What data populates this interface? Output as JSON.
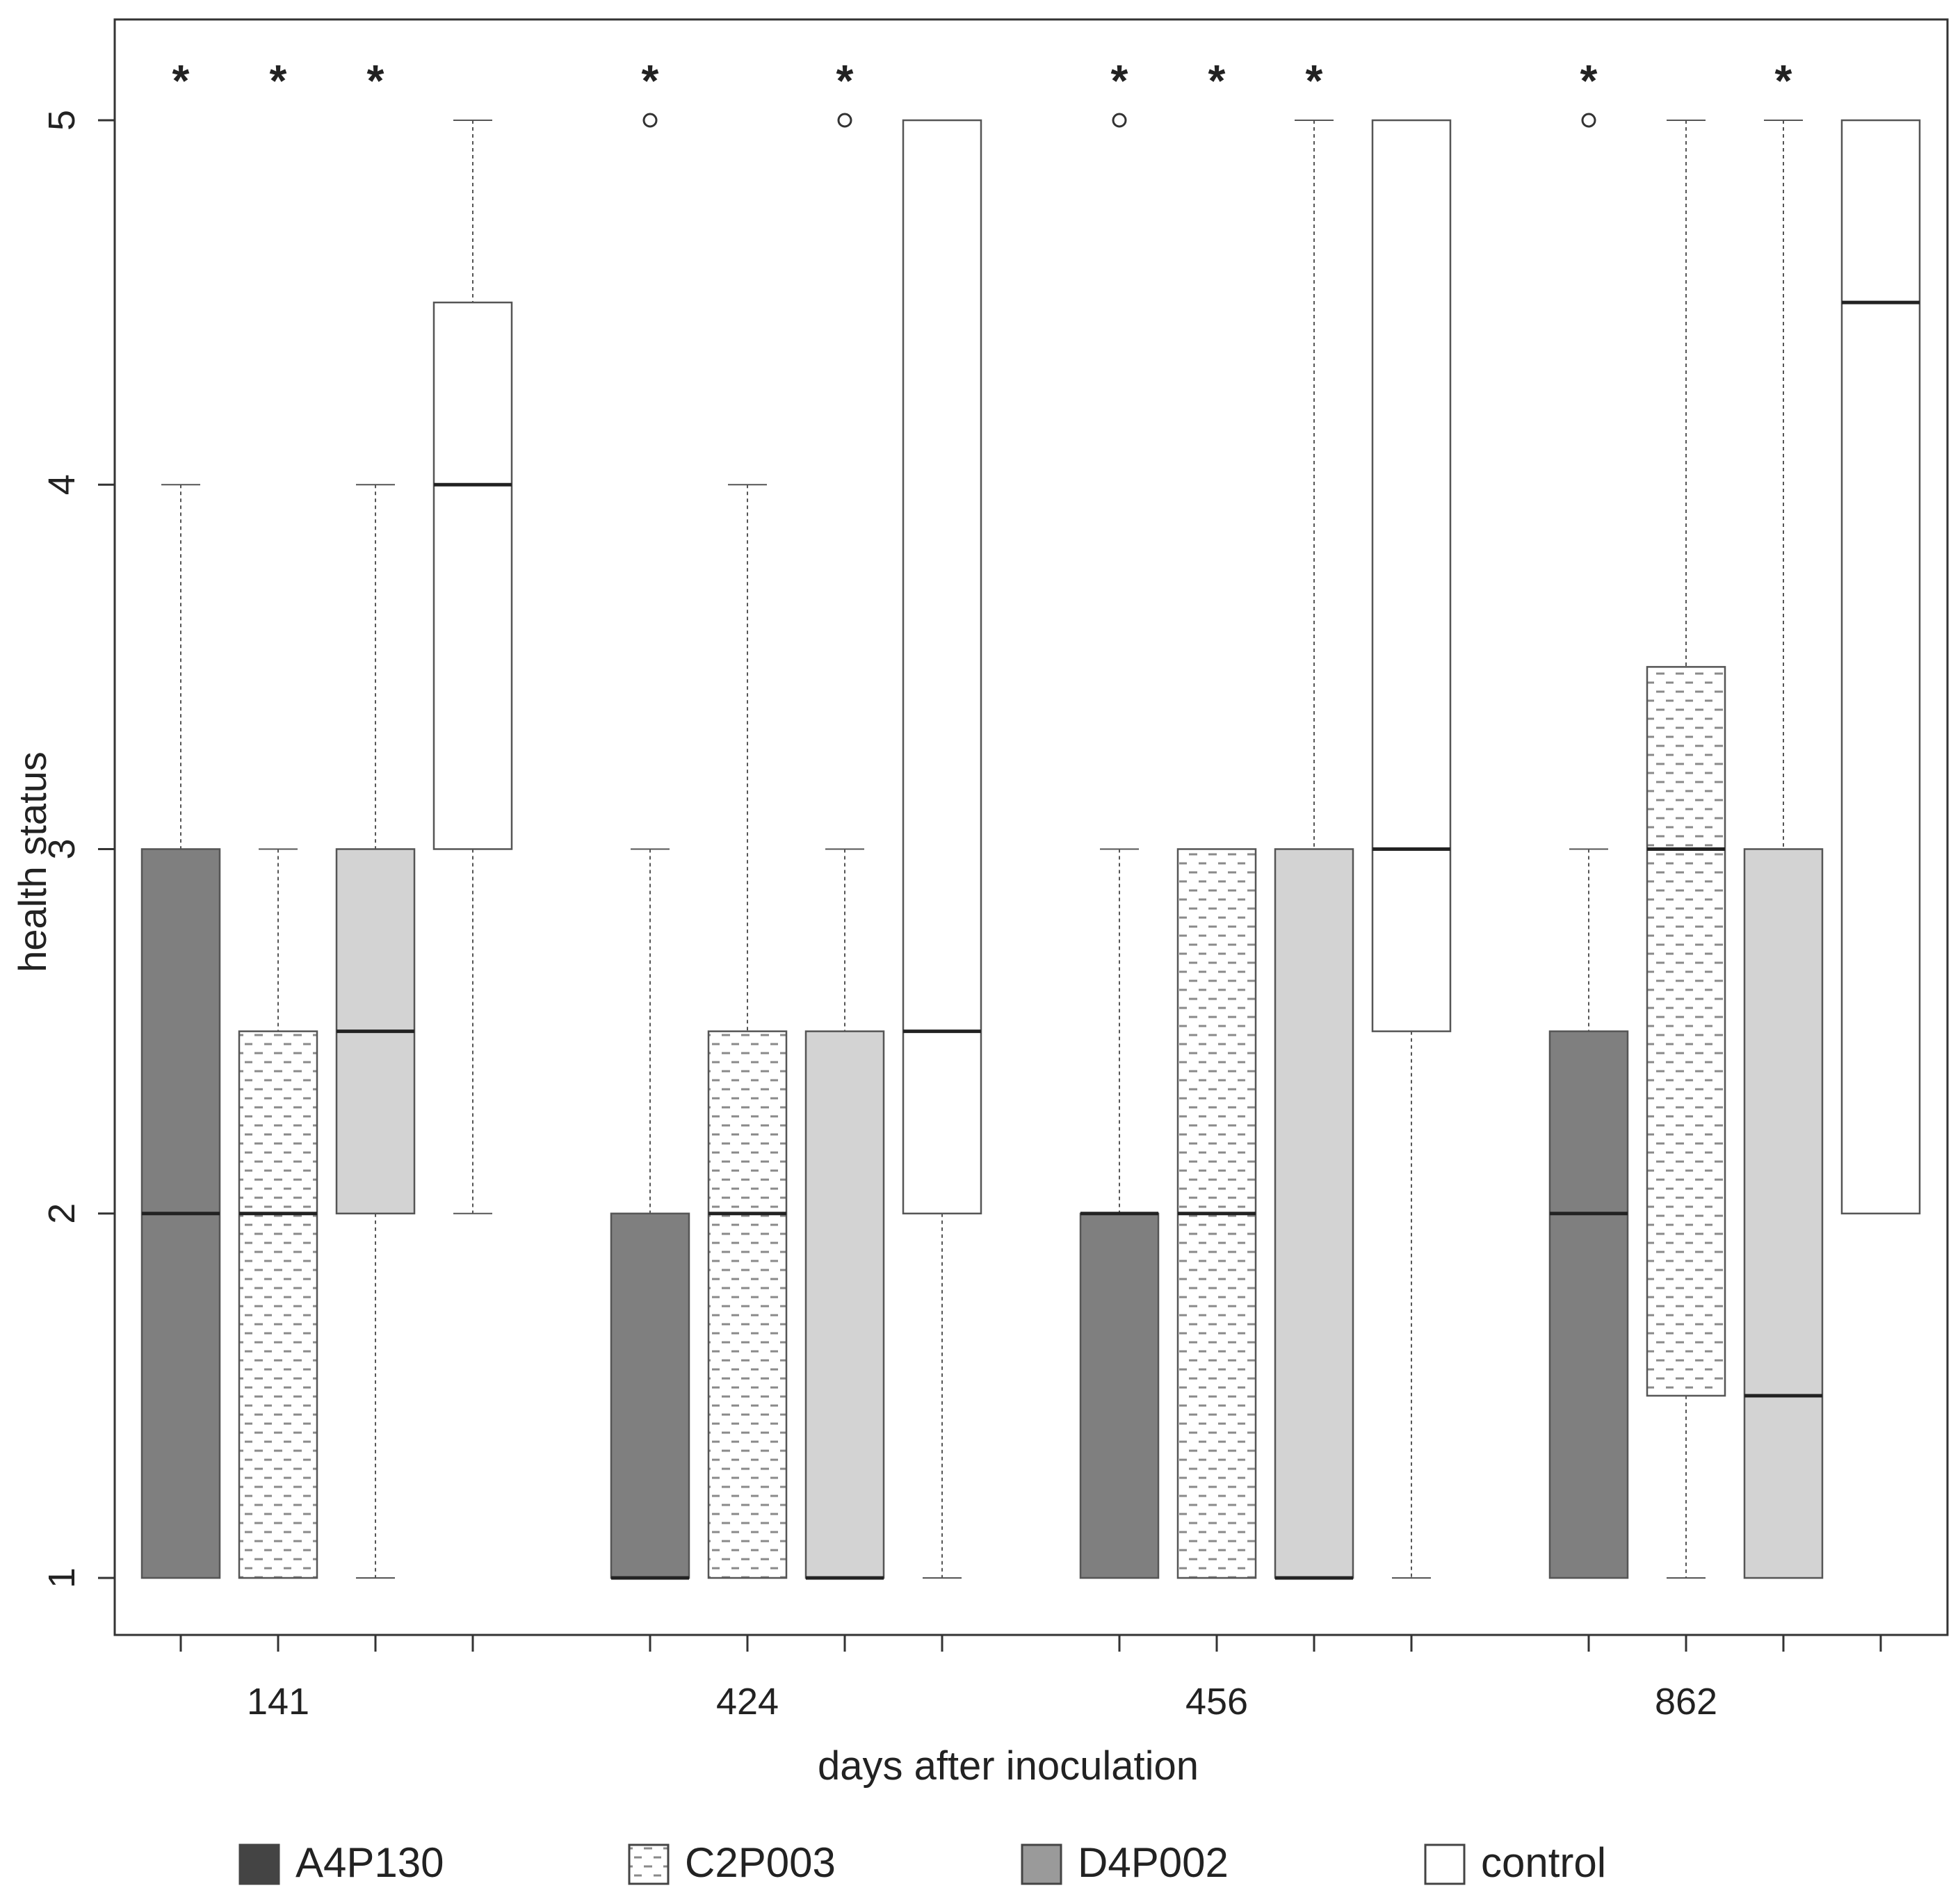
{
  "chart_data": {
    "type": "boxplot",
    "title": "",
    "xlabel": "days after inoculation",
    "ylabel": "health status",
    "ylim": [
      0.84,
      5.28
    ],
    "yticks": [
      1,
      2,
      3,
      4,
      5
    ],
    "ytick_labels": [
      "1",
      "2",
      "3",
      "4",
      "5"
    ],
    "categories": [
      "141",
      "424",
      "456",
      "862"
    ],
    "grid": false,
    "legend_position": "bottom",
    "significance_marker": "*",
    "series": [
      {
        "name": "A4P130",
        "pattern": "solid-dark",
        "color": "#7f7f7f",
        "legend_color": "#444444",
        "boxes": [
          {
            "category": "141",
            "whisker_low": 1,
            "q1": 1,
            "median": 2,
            "q3": 3,
            "whisker_high": 4,
            "outliers": [],
            "significant": true
          },
          {
            "category": "424",
            "whisker_low": 1,
            "q1": 1,
            "median": 1,
            "q3": 2,
            "whisker_high": 3,
            "outliers": [
              5
            ],
            "significant": true
          },
          {
            "category": "456",
            "whisker_low": 1,
            "q1": 1,
            "median": 2,
            "q3": 2,
            "whisker_high": 3,
            "outliers": [
              5
            ],
            "significant": true
          },
          {
            "category": "862",
            "whisker_low": 1,
            "q1": 1,
            "median": 2,
            "q3": 2.5,
            "whisker_high": 3,
            "outliers": [
              5
            ],
            "significant": true
          }
        ]
      },
      {
        "name": "C2P003",
        "pattern": "dashed",
        "color": "#ffffff",
        "legend_color": "#ffffff",
        "boxes": [
          {
            "category": "141",
            "whisker_low": 1,
            "q1": 1,
            "median": 2,
            "q3": 2.5,
            "whisker_high": 3,
            "outliers": [],
            "significant": true
          },
          {
            "category": "424",
            "whisker_low": 1,
            "q1": 1,
            "median": 2,
            "q3": 2.5,
            "whisker_high": 4,
            "outliers": [],
            "significant": false
          },
          {
            "category": "456",
            "whisker_low": 1,
            "q1": 1,
            "median": 2,
            "q3": 3,
            "whisker_high": 3,
            "outliers": [],
            "significant": true
          },
          {
            "category": "862",
            "whisker_low": 1,
            "q1": 1.5,
            "median": 3,
            "q3": 3.5,
            "whisker_high": 5,
            "outliers": [],
            "significant": false
          }
        ]
      },
      {
        "name": "D4P002",
        "pattern": "solid-light",
        "color": "#d3d3d3",
        "legend_color": "#9a9a9a",
        "boxes": [
          {
            "category": "141",
            "whisker_low": 1,
            "q1": 2,
            "median": 2.5,
            "q3": 3,
            "whisker_high": 4,
            "outliers": [],
            "significant": true
          },
          {
            "category": "424",
            "whisker_low": 1,
            "q1": 1,
            "median": 1,
            "q3": 2.5,
            "whisker_high": 3,
            "outliers": [
              5
            ],
            "significant": true
          },
          {
            "category": "456",
            "whisker_low": 1,
            "q1": 1,
            "median": 1,
            "q3": 3,
            "whisker_high": 5,
            "outliers": [],
            "significant": true
          },
          {
            "category": "862",
            "whisker_low": 1,
            "q1": 1,
            "median": 1.5,
            "q3": 3,
            "whisker_high": 5,
            "outliers": [],
            "significant": true
          }
        ]
      },
      {
        "name": "control",
        "pattern": "white",
        "color": "#ffffff",
        "legend_color": "#ffffff",
        "boxes": [
          {
            "category": "141",
            "whisker_low": 2,
            "q1": 3,
            "median": 4,
            "q3": 4.5,
            "whisker_high": 5,
            "outliers": [],
            "significant": false
          },
          {
            "category": "424",
            "whisker_low": 1,
            "q1": 2,
            "median": 2.5,
            "q3": 5,
            "whisker_high": 5,
            "outliers": [],
            "significant": false
          },
          {
            "category": "456",
            "whisker_low": 1,
            "q1": 2.5,
            "median": 3,
            "q3": 5,
            "whisker_high": 5,
            "outliers": [],
            "significant": false
          },
          {
            "category": "862",
            "whisker_low": 2,
            "q1": 2,
            "median": 4.5,
            "q3": 5,
            "whisker_high": 5,
            "outliers": [],
            "significant": false
          }
        ]
      }
    ]
  }
}
